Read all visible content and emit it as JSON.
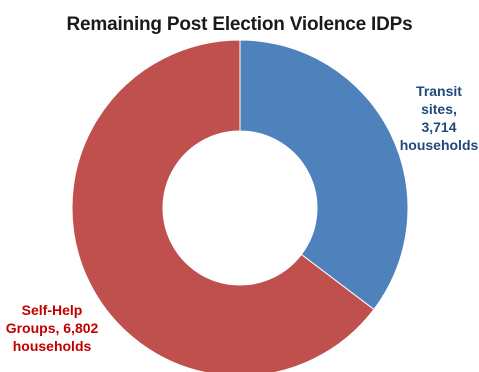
{
  "chart_data": {
    "type": "pie",
    "title": "Remaining Post Election Violence IDPs",
    "donut": true,
    "slices": [
      {
        "name": "Transit sites",
        "value": 3714,
        "unit": "households",
        "color": "#4f81bd",
        "label_lines": [
          "Transit",
          "sites,",
          "3,714",
          "households"
        ]
      },
      {
        "name": "Self-Help Groups",
        "value": 6802,
        "unit": "households",
        "color": "#c0504d",
        "label_lines": [
          "Self-Help",
          "Groups, 6,802",
          "households"
        ]
      }
    ],
    "label_colors": {
      "Transit sites": "#1f497d",
      "Self-Help Groups": "#c00000"
    }
  }
}
